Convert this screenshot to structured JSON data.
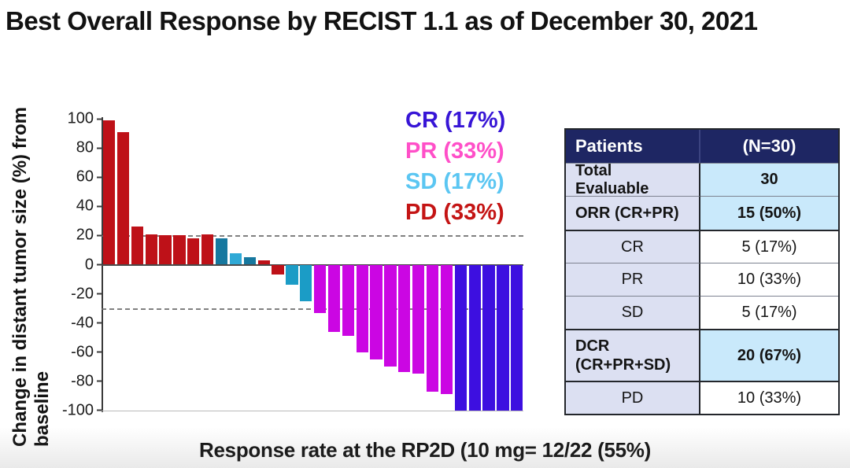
{
  "title": "Best Overall Response by RECIST 1.1 as of December 30, 2021",
  "caption": "Response rate at the RP2D (10 mg= 12/22 (55%)",
  "chart_data": {
    "type": "bar",
    "subtype": "waterfall",
    "title": "",
    "xlabel": "",
    "ylabel": "Change in distant tumor size (%) from baseline",
    "ylabel_line1": "Change in distant tumor size (%) from",
    "ylabel_line2": "baseline",
    "ylim": [
      -100,
      100
    ],
    "yticks": [
      100,
      80,
      60,
      40,
      20,
      0,
      -20,
      -40,
      -60,
      -80,
      -100
    ],
    "reference_lines": [
      20,
      -30
    ],
    "grid": false,
    "legend_position": "top-right-inside",
    "legend": [
      {
        "label": "CR",
        "pct": "(17%)",
        "color": "#3715D6"
      },
      {
        "label": "PR",
        "pct": "(33%)",
        "color": "#FF4FC8"
      },
      {
        "label": "SD",
        "pct": "(17%)",
        "color": "#5BC6F2"
      },
      {
        "label": "PD",
        "pct": "(33%)",
        "color": "#C41414"
      }
    ],
    "bar_colors": {
      "PD": "#BE1118",
      "PR": "#CB06E3",
      "CR": "#3D0FE0",
      "SD_dark": "#16789F",
      "SD_mid": "#1B9CC6",
      "SD_light": "#2FA9D6"
    },
    "bars": [
      {
        "value": 99,
        "response": "PD"
      },
      {
        "value": 91,
        "response": "PD"
      },
      {
        "value": 26,
        "response": "PD"
      },
      {
        "value": 21,
        "response": "PD"
      },
      {
        "value": 20,
        "response": "PD"
      },
      {
        "value": 20,
        "response": "PD"
      },
      {
        "value": 18,
        "response": "PD"
      },
      {
        "value": 21,
        "response": "PD"
      },
      {
        "value": 18,
        "response": "SD",
        "shade": "SD_dark"
      },
      {
        "value": 8,
        "response": "SD",
        "shade": "SD_light"
      },
      {
        "value": 5,
        "response": "SD",
        "shade": "SD_dark"
      },
      {
        "value": 3,
        "response": "PD"
      },
      {
        "value": -7,
        "response": "PD"
      },
      {
        "value": -14,
        "response": "SD",
        "shade": "SD_mid"
      },
      {
        "value": -25,
        "response": "SD",
        "shade": "SD_mid"
      },
      {
        "value": -33,
        "response": "PR"
      },
      {
        "value": -46,
        "response": "PR"
      },
      {
        "value": -49,
        "response": "PR"
      },
      {
        "value": -60,
        "response": "PR"
      },
      {
        "value": -65,
        "response": "PR"
      },
      {
        "value": -70,
        "response": "PR"
      },
      {
        "value": -74,
        "response": "PR"
      },
      {
        "value": -75,
        "response": "PR"
      },
      {
        "value": -87,
        "response": "PR"
      },
      {
        "value": -89,
        "response": "PR"
      },
      {
        "value": -100,
        "response": "CR"
      },
      {
        "value": -100,
        "response": "CR"
      },
      {
        "value": -100,
        "response": "CR"
      },
      {
        "value": -100,
        "response": "CR"
      },
      {
        "value": -100,
        "response": "CR"
      }
    ]
  },
  "table": {
    "header": {
      "col1": "Patients",
      "col2": "(N=30)"
    },
    "colors": {
      "header_bg": "#1E2663",
      "label_bg": "#DCE0F2",
      "highlight_bg": "#C9E9FB",
      "plain_bg": "#FFFFFF"
    },
    "rows": [
      {
        "label": "Total Evaluable",
        "label2": "",
        "value": "30",
        "bold": true,
        "highlight": true,
        "align": "left",
        "sep": "thin",
        "height": 42
      },
      {
        "label": "ORR (CR+PR)",
        "label2": "",
        "value": "15 (50%)",
        "bold": true,
        "highlight": true,
        "align": "left",
        "sep": "thin",
        "height": 43
      },
      {
        "label": "CR",
        "label2": "",
        "value": "5 (17%)",
        "bold": false,
        "highlight": false,
        "align": "center",
        "sep": "thick",
        "height": 42
      },
      {
        "label": "PR",
        "label2": "",
        "value": "10 (33%)",
        "bold": false,
        "highlight": false,
        "align": "center",
        "sep": "thin",
        "height": 42
      },
      {
        "label": "SD",
        "label2": "",
        "value": "5 (17%)",
        "bold": false,
        "highlight": false,
        "align": "center",
        "sep": "thin",
        "height": 42
      },
      {
        "label": "DCR",
        "label2": "(CR+PR+SD)",
        "value": "20 (67%)",
        "bold": true,
        "highlight": true,
        "align": "left",
        "sep": "thick",
        "height": 66
      },
      {
        "label": "PD",
        "label2": "",
        "value": "10 (33%)",
        "bold": false,
        "highlight": false,
        "align": "center",
        "sep": "thick",
        "height": 42
      }
    ]
  }
}
